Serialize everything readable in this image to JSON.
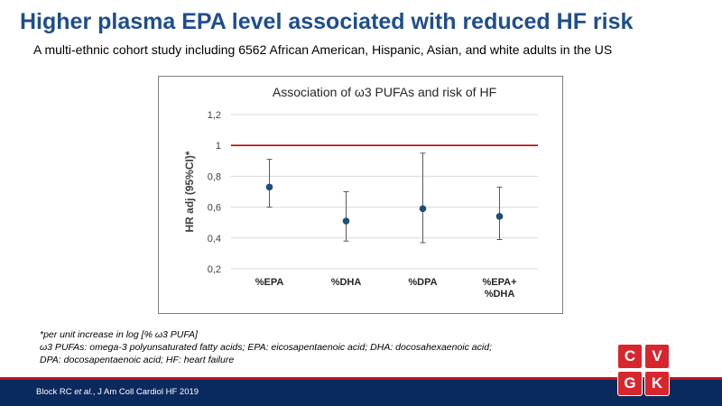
{
  "slide": {
    "headline": "Higher plasma EPA level associated with reduced HF risk",
    "subheadline": "A multi-ethnic cohort study including 6562 African American, Hispanic, Asian, and white adults in the US"
  },
  "chart_data": {
    "type": "scatter",
    "title": "Association of ω3 PUFAs and risk of HF",
    "ylabel": "HR adj (95%CI)*",
    "xlabel": "",
    "categories": [
      [
        "%EPA"
      ],
      [
        "%DHA"
      ],
      [
        "%DPA"
      ],
      [
        "%EPA+",
        "%DHA"
      ]
    ],
    "values": [
      0.73,
      0.51,
      0.59,
      0.54
    ],
    "ci_lower": [
      0.6,
      0.38,
      0.37,
      0.39
    ],
    "ci_upper": [
      0.91,
      0.7,
      0.95,
      0.73
    ],
    "ylim": [
      0.2,
      1.2
    ],
    "yticks": [
      "0,2",
      "0,4",
      "0,6",
      "0,8",
      "1",
      "1,2"
    ],
    "reference_line": 1,
    "grid": true,
    "colors": {
      "point": "#1f4e79",
      "reference": "#c00000",
      "error_bar": "#595959",
      "grid": "#d9d9d9"
    }
  },
  "footnotes": [
    "*per unit increase in log [% ω3 PUFA]",
    "ω3 PUFAs: omega-3 polyunsaturated fatty acids; EPA: eicosapentaenoic acid; DHA: docosahexaenoic acid;",
    "DPA: docosapentaenoic acid; HF: heart failure"
  ],
  "footer": {
    "citation_prefix": "Block RC ",
    "citation_italic": "et al.",
    "citation_suffix": ", J Am Coll Cardiol HF 2019"
  },
  "logo": {
    "letters": [
      "C",
      "V",
      "G",
      "K"
    ]
  }
}
